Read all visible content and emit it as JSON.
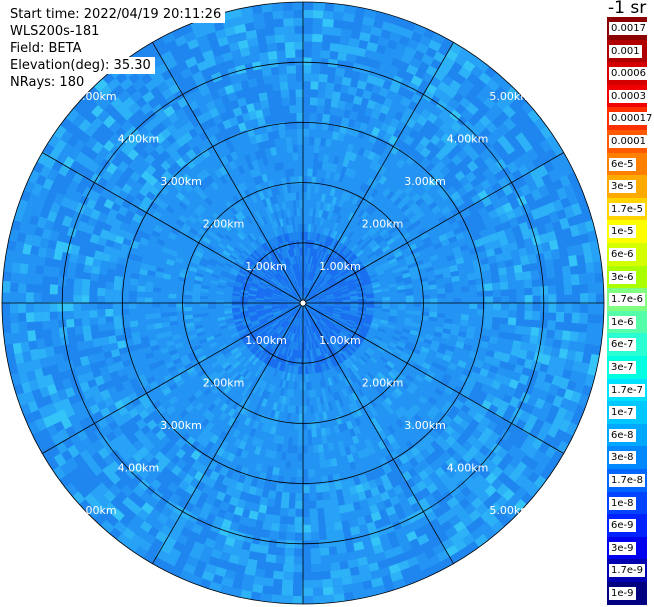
{
  "info": {
    "start_time": "Start time: 2022/04/19 20:11:26",
    "instrument": "WLS200s-181",
    "field": "Field: BETA",
    "elevation": "Elevation(deg): 35.30",
    "nrays": "NRays: 180"
  },
  "colorbar": {
    "unit": "-1 sr",
    "levels": [
      {
        "label": "0.0017",
        "color": "#8b0000"
      },
      {
        "label": "0.001",
        "color": "#b00000"
      },
      {
        "label": "0.0006",
        "color": "#d40000"
      },
      {
        "label": "0.0003",
        "color": "#f00000"
      },
      {
        "label": "0.00017",
        "color": "#ff3000"
      },
      {
        "label": "0.0001",
        "color": "#ff5a00"
      },
      {
        "label": "6e-5",
        "color": "#ff8000"
      },
      {
        "label": "3e-5",
        "color": "#ffaa00"
      },
      {
        "label": "1.7e-5",
        "color": "#ffd400"
      },
      {
        "label": "1e-5",
        "color": "#ffff00"
      },
      {
        "label": "6e-6",
        "color": "#d4ff00"
      },
      {
        "label": "3e-6",
        "color": "#aaff00"
      },
      {
        "label": "1.7e-6",
        "color": "#80ff80"
      },
      {
        "label": "1e-6",
        "color": "#55ffaa"
      },
      {
        "label": "6e-7",
        "color": "#2affd4"
      },
      {
        "label": "3e-7",
        "color": "#00ffe0"
      },
      {
        "label": "1.7e-7",
        "color": "#00e0ff"
      },
      {
        "label": "1e-7",
        "color": "#00c8ff"
      },
      {
        "label": "6e-8",
        "color": "#00a8ff"
      },
      {
        "label": "3e-8",
        "color": "#0088ff"
      },
      {
        "label": "1.7e-8",
        "color": "#0066ff"
      },
      {
        "label": "1e-8",
        "color": "#0044ff"
      },
      {
        "label": "6e-9",
        "color": "#0022ff"
      },
      {
        "label": "3e-9",
        "color": "#0000ee"
      },
      {
        "label": "1.7e-9",
        "color": "#0000b0"
      },
      {
        "label": "1e-9",
        "color": "#000080"
      }
    ]
  },
  "chart_data": {
    "type": "heatmap",
    "projection": "polar (PPI scan)",
    "field": "BETA",
    "unit": "-1 sr",
    "elevation_deg": 35.3,
    "n_rays": 180,
    "max_range_km": 5.0,
    "range_rings_km": [
      1,
      2,
      3,
      4,
      5
    ],
    "range_labels": [
      "1.00km",
      "2.00km",
      "3.00km",
      "4.00km",
      "5.00km"
    ],
    "spoke_angles_deg": [
      0,
      30,
      60,
      90,
      120,
      150,
      180,
      210,
      240,
      270,
      300,
      330
    ],
    "typical_values": [
      {
        "range_km": [
          0,
          1
        ],
        "level": "1e-8 to 1.7e-8"
      },
      {
        "range_km": [
          1,
          3
        ],
        "level": "3e-8 to 6e-8"
      },
      {
        "range_km": [
          3,
          5
        ],
        "level": "3e-8 to 1e-7"
      }
    ],
    "grid": true
  }
}
